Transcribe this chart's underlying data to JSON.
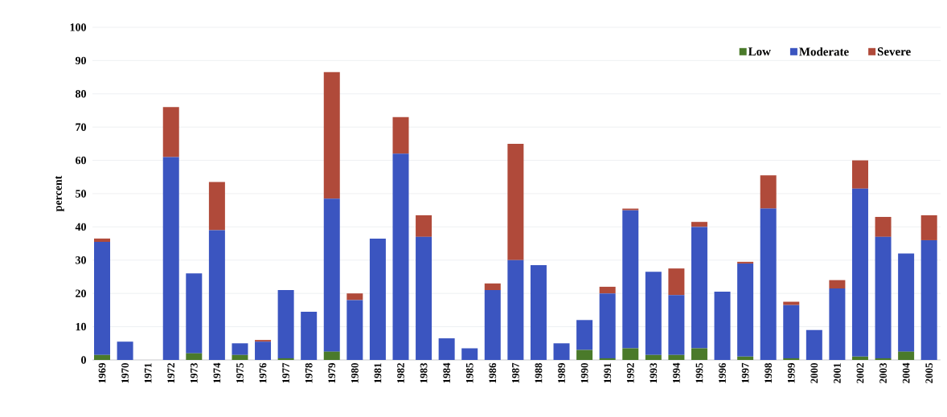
{
  "chart_data": {
    "type": "bar",
    "stacked": true,
    "ylabel": "percent",
    "categories": [
      "1969",
      "1970",
      "1971",
      "1972",
      "1973",
      "1974",
      "1975",
      "1976",
      "1977",
      "1978",
      "1979",
      "1980",
      "1981",
      "1982",
      "1983",
      "1984",
      "1985",
      "1986",
      "1987",
      "1988",
      "1989",
      "1990",
      "1991",
      "1992",
      "1993",
      "1994",
      "1995",
      "1996",
      "1997",
      "1998",
      "1999",
      "2000",
      "2001",
      "2002",
      "2003",
      "2004",
      "2005"
    ],
    "series": [
      {
        "name": "Low",
        "color": "#4a7a2a",
        "values": [
          1.5,
          0,
          0,
          0,
          2,
          0,
          1.5,
          0,
          0.5,
          0,
          2.5,
          0,
          0,
          0,
          0,
          0,
          0,
          0,
          0,
          0,
          0,
          3,
          0.5,
          3.5,
          1.5,
          1.5,
          3.5,
          0,
          1,
          0,
          0.5,
          0,
          0,
          1,
          0.5,
          2.5,
          0
        ]
      },
      {
        "name": "Moderate",
        "color": "#3b55c0",
        "values": [
          34,
          5.5,
          0,
          61,
          24,
          39,
          3.5,
          5.5,
          20.5,
          14.5,
          46,
          18,
          36.5,
          62,
          37,
          6.5,
          3.5,
          21,
          30,
          28.5,
          5,
          9,
          19.5,
          41.5,
          25,
          18,
          36.5,
          20.5,
          28,
          45.5,
          16,
          9,
          21.5,
          50.5,
          36.5,
          29.5,
          36
        ]
      },
      {
        "name": "Severe",
        "color": "#b04a3a",
        "values": [
          1,
          0,
          0,
          15,
          0,
          14.5,
          0,
          0.5,
          0,
          0,
          38,
          2,
          0,
          11,
          6.5,
          0,
          0,
          2,
          35,
          0,
          0,
          0,
          2,
          0.5,
          0,
          8,
          1.5,
          0,
          0.5,
          10,
          1,
          0,
          2.5,
          8.5,
          6,
          0,
          7.5
        ]
      }
    ],
    "ylim": [
      0,
      100
    ],
    "yticks": [
      0,
      10,
      20,
      30,
      40,
      50,
      60,
      70,
      80,
      90,
      100
    ],
    "grid": "y",
    "legend": "top right"
  }
}
